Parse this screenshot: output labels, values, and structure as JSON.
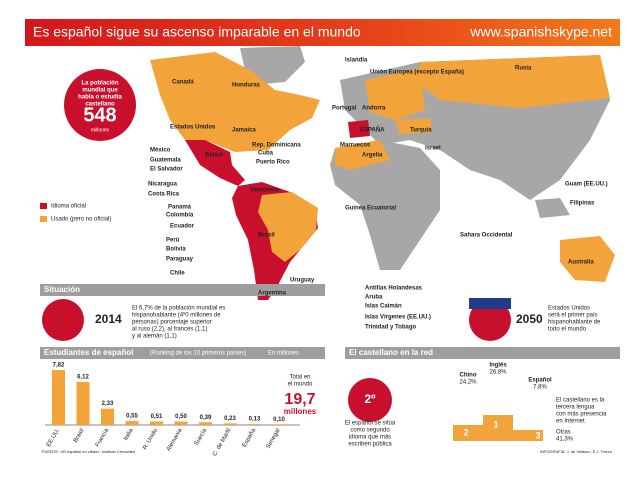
{
  "header": {
    "title": "Es español sigue su ascenso imparable en el mundo",
    "url": "www.spanishskype.net"
  },
  "badge": {
    "text": [
      "La población",
      "mundial que",
      "habla o estudia",
      "castellano"
    ],
    "value": "548",
    "unit": "millones"
  },
  "map_labels": [
    "Canadá",
    "Honduras",
    "Estados Unidos",
    "Jamaica",
    "Belice",
    "Rep. Dominicana",
    "Cuba",
    "Puerto Rico",
    "México",
    "Guatemala",
    "El Salvador",
    "Nicaragua",
    "Costa Rica",
    "Venezuela",
    "Panamá",
    "Colombia",
    "Ecuador",
    "Perú",
    "Bolivia",
    "Paraguay",
    "Chile",
    "Brasil",
    "Uruguay",
    "Argentina",
    "Islandia",
    "Unión Europea (excepto España)",
    "Rusia",
    "Portugal",
    "Andorra",
    "ESPAÑA",
    "Turquía",
    "Marruecos",
    "Argelia",
    "Israel",
    "Guinea Ecuatorial",
    "Sahara Occidental",
    "Guam (EE.UU.)",
    "Filipinas",
    "Australia",
    "Antillas Holandesas",
    "Aruba",
    "Islas Caimán",
    "Islas Vírgenes (EE.UU.)",
    "Trinidad y Tobago"
  ],
  "legend": [
    "Idioma oficial",
    "Usado (pero no oficial)"
  ],
  "situacion": {
    "heading": "Situación",
    "year_now": "2014",
    "text_now": [
      "El 6,7% de la población mundial es",
      "hispanohablante (4º0 millones de",
      "personas) porcentaje superior",
      "al ruso (2,2), al francés (1,1)",
      "y al alemán (1,1)"
    ],
    "year_future": "2050",
    "text_future": [
      "Estados Unidos",
      "será el primer país",
      "hispanohablante de",
      "todo el mundo"
    ]
  },
  "students": {
    "title": "Estudiantes de español",
    "subtitle": "(Ranking de los 10 primeros países)",
    "unit": "En millones",
    "categories": [
      "EE.UU.",
      "Brasil",
      "Francia",
      "Italia",
      "R. Unido",
      "Alemania",
      "Suecia",
      "C. de Marfil",
      "España",
      "Senegal"
    ],
    "values": [
      7.82,
      6.12,
      2.33,
      0.55,
      0.51,
      0.5,
      0.39,
      0.23,
      0.13,
      0.1
    ],
    "value_labels": [
      "7,82",
      "6,12",
      "2,33",
      "0,55",
      "0,51",
      "0,50",
      "0,39",
      "0,23",
      "0,13",
      "0,10"
    ],
    "total_text": [
      "Total en",
      "el mundo"
    ],
    "total": "19,7",
    "total_unit": "millones",
    "source": "FUENTE: «El español en cifras». Instituto Cervantes"
  },
  "red": {
    "heading": "El castellano en la red",
    "rank": "2º",
    "left_text": [
      "El español se sitúa",
      "como segundo",
      "idioma que más",
      "escriben pública"
    ],
    "podium": [
      {
        "name": "Chino",
        "pct": "24,2%",
        "place": "2"
      },
      {
        "name": "Inglés",
        "pct": "26,8%",
        "place": "1"
      },
      {
        "name": "Español",
        "pct": "7,8%",
        "place": "3"
      }
    ],
    "right_text": [
      "El castellano es la",
      "tercera lengua",
      "con más presencia",
      "en Internet"
    ],
    "otras": "Otras",
    "otras_pct": "41,3%",
    "credit": "INFOGRAFÍA: J. de Velasco, E.J. Torres"
  }
}
